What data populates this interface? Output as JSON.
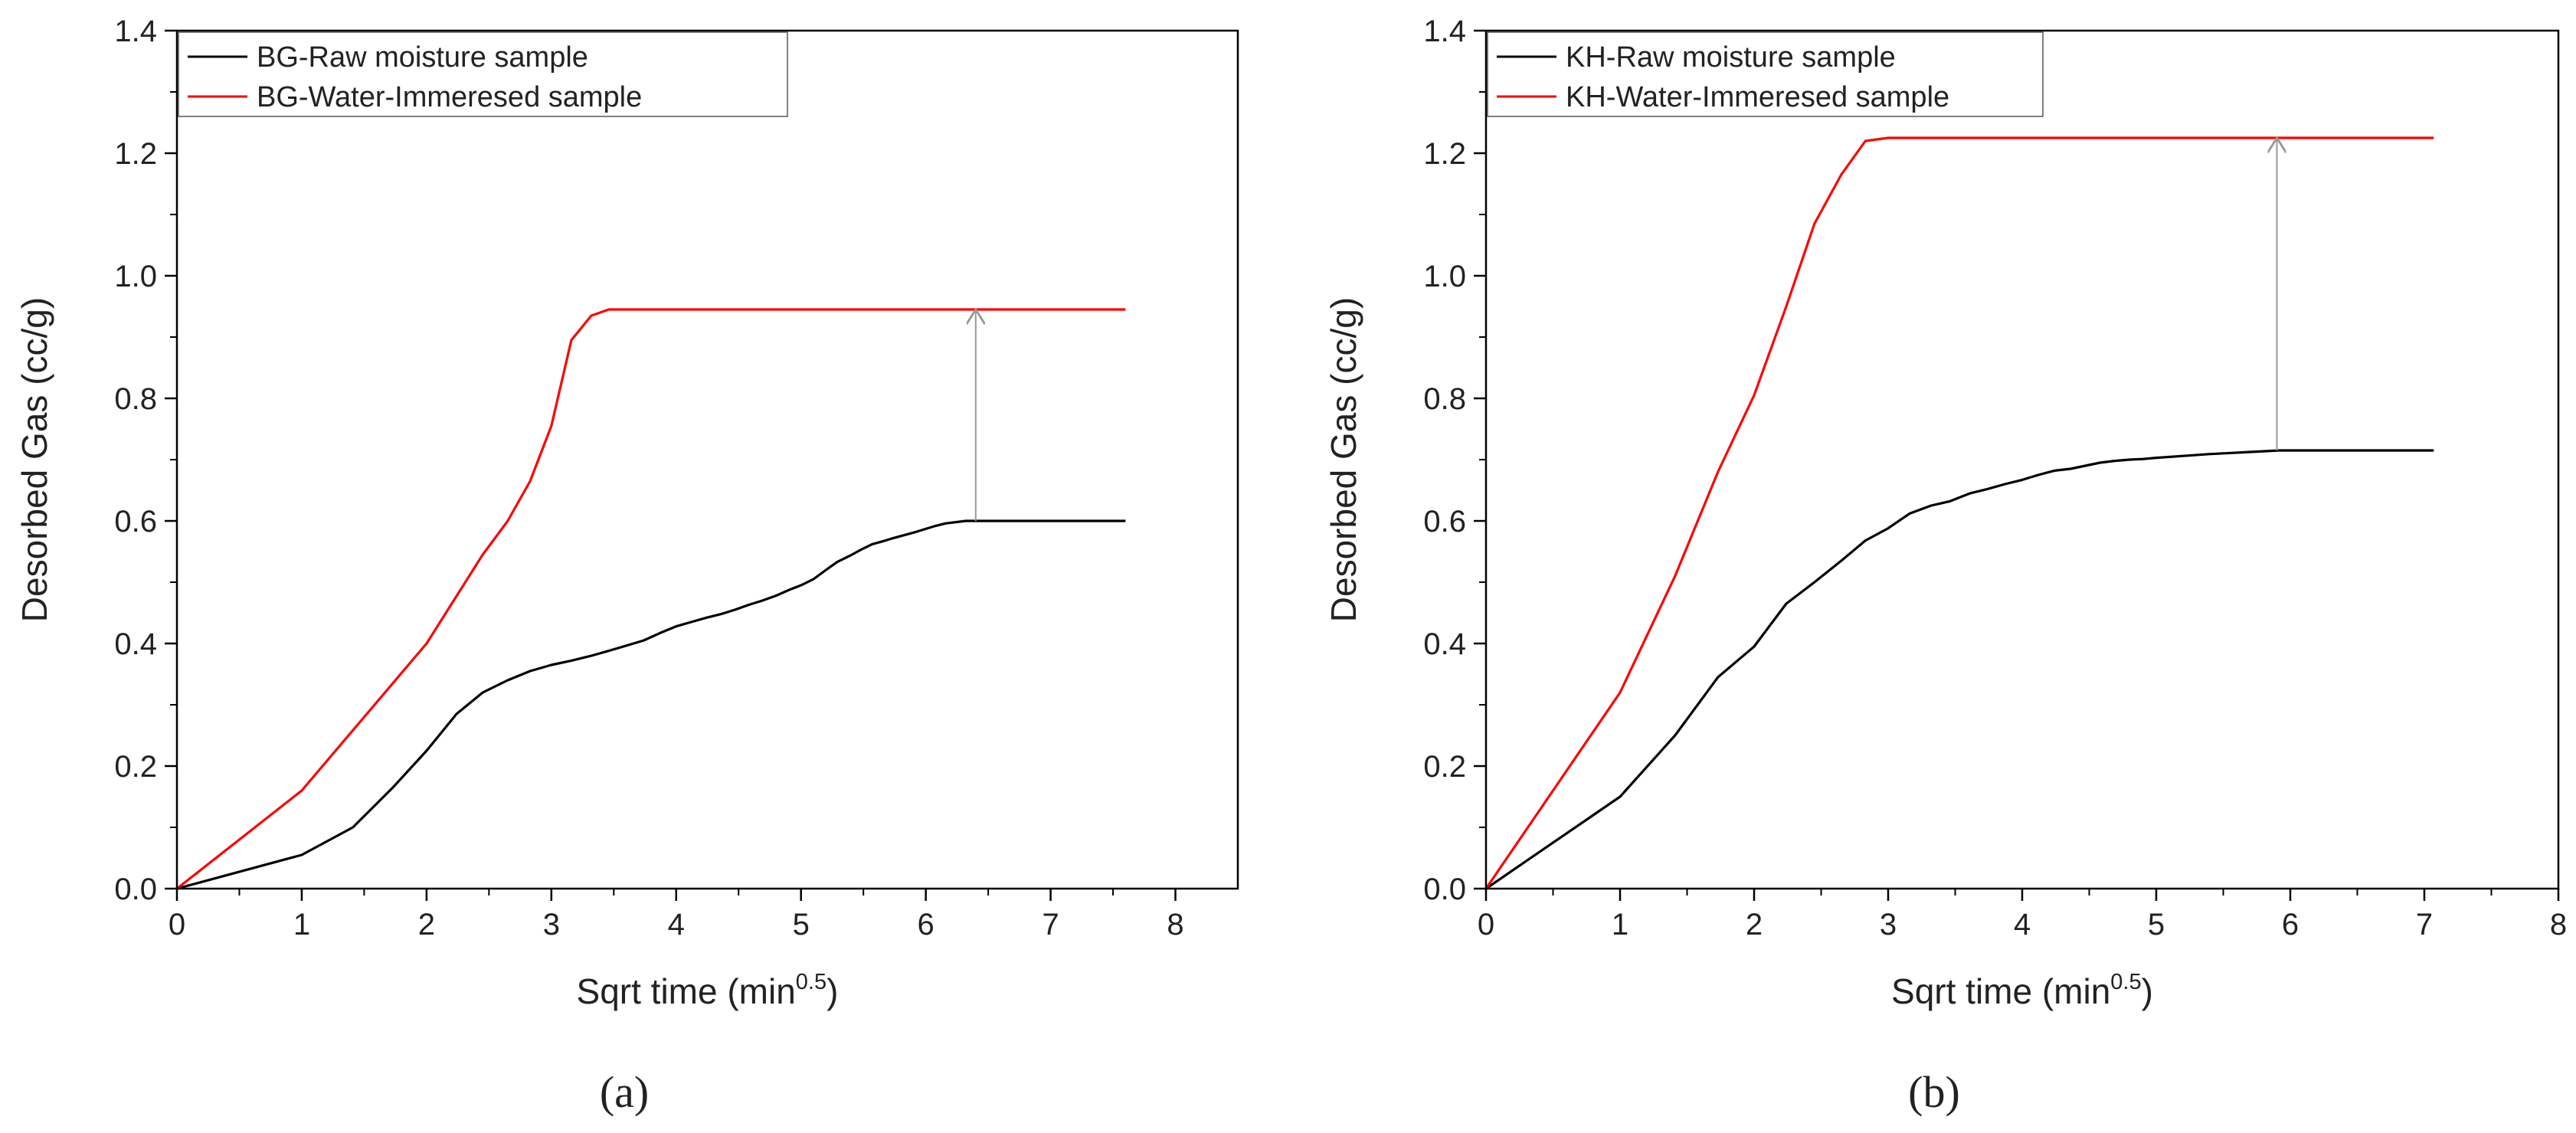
{
  "chart_data": [
    {
      "panel_label": "(a)",
      "type": "line",
      "xlabel": "Sqrt time (min",
      "xlabel_sup": "0.5",
      "xlabel_suffix": ")",
      "ylabel": "Desorbed Gas (cc/g)",
      "xlim": [
        0,
        8.5
      ],
      "ylim": [
        0,
        1.4
      ],
      "xticks": [
        "0",
        "1",
        "2",
        "3",
        "4",
        "5",
        "6",
        "7",
        "8"
      ],
      "yticks": [
        "0.0",
        "0.2",
        "0.4",
        "0.6",
        "0.8",
        "1.0",
        "1.2",
        "1.4"
      ],
      "legend_position": "top-left",
      "grid": false,
      "series": [
        {
          "name": "BG-Raw moisture sample",
          "color": "#000000",
          "x": [
            0,
            1.0,
            1.41,
            1.73,
            2.0,
            2.24,
            2.45,
            2.65,
            2.83,
            3.0,
            3.16,
            3.32,
            3.46,
            3.61,
            3.74,
            3.87,
            4.0,
            4.12,
            4.24,
            4.36,
            4.47,
            4.58,
            4.69,
            4.8,
            4.9,
            5.0,
            5.1,
            5.2,
            5.29,
            5.39,
            5.48,
            5.57,
            5.66,
            5.74,
            5.83,
            5.92,
            6.0,
            6.08,
            6.16,
            6.24,
            6.32,
            7.6
          ],
          "y": [
            0,
            0.055,
            0.1,
            0.165,
            0.225,
            0.285,
            0.32,
            0.34,
            0.355,
            0.365,
            0.372,
            0.38,
            0.388,
            0.397,
            0.405,
            0.417,
            0.428,
            0.435,
            0.442,
            0.448,
            0.455,
            0.463,
            0.47,
            0.478,
            0.487,
            0.495,
            0.505,
            0.52,
            0.533,
            0.543,
            0.553,
            0.562,
            0.567,
            0.572,
            0.577,
            0.582,
            0.587,
            0.592,
            0.596,
            0.598,
            0.6,
            0.6
          ]
        },
        {
          "name": "BG-Water-Immeresed sample",
          "color": "#ff0000",
          "x": [
            0,
            1.0,
            2.0,
            2.45,
            2.65,
            2.83,
            3.0,
            3.16,
            3.32,
            3.46,
            3.6,
            7.6
          ],
          "y": [
            0,
            0.16,
            0.4,
            0.545,
            0.6,
            0.665,
            0.755,
            0.895,
            0.935,
            0.945,
            0.945,
            0.945
          ]
        }
      ],
      "annotation_arrow": {
        "x": 6.4,
        "y_from": 0.6,
        "y_to": 0.945,
        "color": "#999999"
      }
    },
    {
      "panel_label": "(b)",
      "type": "line",
      "xlabel": "Sqrt time (min",
      "xlabel_sup": "0.5",
      "xlabel_suffix": ")",
      "ylabel": "Desorbed Gas (cc/g)",
      "xlim": [
        0,
        8
      ],
      "ylim": [
        0,
        1.4
      ],
      "xticks": [
        "0",
        "1",
        "2",
        "3",
        "4",
        "5",
        "6",
        "7",
        "8"
      ],
      "yticks": [
        "0.0",
        "0.2",
        "0.4",
        "0.6",
        "0.8",
        "1.0",
        "1.2",
        "1.4"
      ],
      "legend_position": "top-left",
      "grid": false,
      "series": [
        {
          "name": "KH-Raw moisture sample",
          "color": "#000000",
          "x": [
            0,
            1.0,
            1.41,
            1.73,
            2.0,
            2.24,
            2.45,
            2.65,
            2.83,
            3.0,
            3.16,
            3.32,
            3.46,
            3.61,
            3.74,
            3.87,
            4.0,
            4.12,
            4.24,
            4.36,
            4.47,
            4.58,
            4.69,
            4.8,
            4.9,
            5.0,
            5.2,
            5.39,
            5.57,
            5.74,
            5.92,
            7.07
          ],
          "y": [
            0,
            0.15,
            0.25,
            0.345,
            0.395,
            0.465,
            0.5,
            0.535,
            0.568,
            0.588,
            0.612,
            0.625,
            0.632,
            0.645,
            0.652,
            0.66,
            0.667,
            0.675,
            0.682,
            0.685,
            0.69,
            0.695,
            0.698,
            0.7,
            0.701,
            0.703,
            0.706,
            0.709,
            0.711,
            0.713,
            0.715,
            0.715
          ]
        },
        {
          "name": "KH-Water-Immeresed sample",
          "color": "#ff0000",
          "x": [
            0,
            1.0,
            1.41,
            1.73,
            2.0,
            2.24,
            2.45,
            2.65,
            2.83,
            3.0,
            7.07
          ],
          "y": [
            0,
            0.32,
            0.51,
            0.68,
            0.805,
            0.95,
            1.085,
            1.165,
            1.22,
            1.225,
            1.225
          ]
        }
      ],
      "annotation_arrow": {
        "x": 5.9,
        "y_from": 0.715,
        "y_to": 1.225,
        "color": "#999999"
      }
    }
  ]
}
